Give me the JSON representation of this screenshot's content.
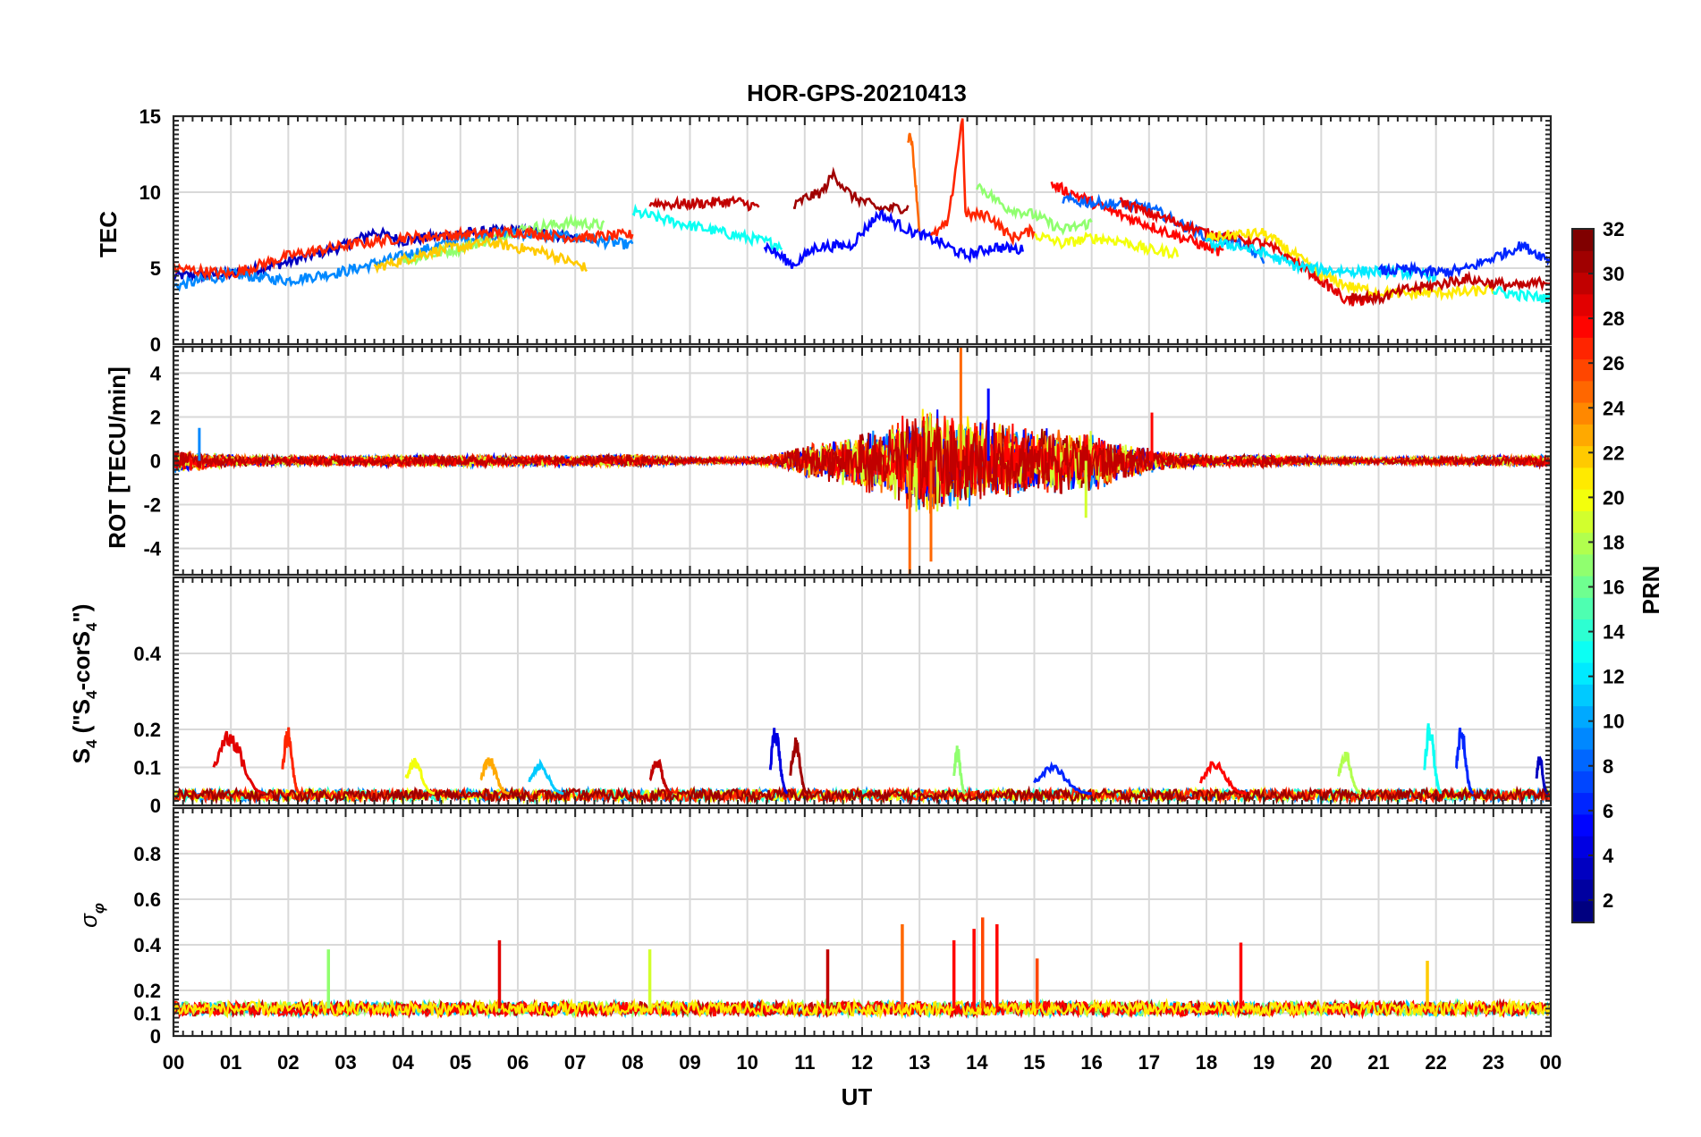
{
  "chart_data": {
    "type": "line",
    "title": "HOR-GPS-20210413",
    "xlabel": "UT",
    "x_ticks": [
      "00",
      "01",
      "02",
      "03",
      "04",
      "05",
      "06",
      "07",
      "08",
      "09",
      "10",
      "11",
      "12",
      "13",
      "14",
      "15",
      "16",
      "17",
      "18",
      "19",
      "20",
      "21",
      "22",
      "23",
      "00"
    ],
    "xlim": [
      0,
      24
    ],
    "colorbar": {
      "label": "PRN",
      "range": [
        1,
        32
      ],
      "ticks": [
        "2",
        "4",
        "6",
        "8",
        "10",
        "12",
        "14",
        "16",
        "18",
        "20",
        "22",
        "24",
        "26",
        "28",
        "30",
        "32"
      ],
      "colormap": "jet"
    },
    "panels": [
      {
        "id": "tec",
        "ylabel": "TEC",
        "ylim": [
          0,
          15
        ],
        "yticks": [
          "0",
          "5",
          "10",
          "15"
        ],
        "series": [
          {
            "prn": 3,
            "x": [
              0,
              1,
              2,
              3,
              3.5,
              4,
              5,
              6,
              7
            ],
            "y": [
              4.5,
              4.6,
              5.4,
              6.5,
              7.4,
              6.8,
              7.3,
              7.5,
              7.0
            ]
          },
          {
            "prn": 9,
            "x": [
              0,
              1,
              2,
              3,
              4,
              5,
              6,
              7,
              8
            ],
            "y": [
              3.8,
              4.6,
              4.2,
              4.8,
              5.8,
              6.9,
              7.3,
              7.0,
              6.5
            ]
          },
          {
            "prn": 13,
            "x": [
              8,
              9,
              10,
              10.6
            ],
            "y": [
              8.7,
              7.8,
              7.0,
              6.5
            ]
          },
          {
            "prn": 17,
            "x": [
              4,
              5,
              6,
              6.5,
              7,
              7.5
            ],
            "y": [
              5.5,
              6.3,
              7.5,
              7.8,
              8.0,
              7.8
            ]
          },
          {
            "prn": 22,
            "x": [
              3.5,
              4.5,
              5.5,
              6.5,
              7.2
            ],
            "y": [
              5.0,
              6.1,
              6.7,
              6.0,
              5.0
            ]
          },
          {
            "prn": 27,
            "x": [
              0,
              1,
              2,
              3,
              4,
              5,
              6,
              7,
              8
            ],
            "y": [
              5.0,
              4.6,
              5.8,
              6.5,
              7.0,
              7.2,
              7.4,
              7.0,
              7.2
            ]
          },
          {
            "prn": 30,
            "x": [
              8.3,
              8.8,
              9.3,
              9.8,
              10.2
            ],
            "y": [
              9.3,
              9.2,
              9.3,
              9.4,
              9.0
            ]
          },
          {
            "prn": 31,
            "x": [
              10.8,
              11,
              11.3,
              11.5,
              11.8,
              12.3,
              12.8
            ],
            "y": [
              9.0,
              9.6,
              10.0,
              11.2,
              9.8,
              8.9,
              9.0
            ]
          },
          {
            "prn": 5,
            "x": [
              10.3,
              10.8,
              11.2,
              11.8,
              12.3,
              12.8,
              13.3,
              13.8,
              14.3,
              14.8
            ],
            "y": [
              6.5,
              5.2,
              6.4,
              6.5,
              8.6,
              7.5,
              6.8,
              5.8,
              6.4,
              6.2
            ]
          },
          {
            "prn": 25,
            "x": [
              12.8,
              12.85,
              12.9,
              13.0
            ],
            "y": [
              13.6,
              13.8,
              12.0,
              7.5
            ]
          },
          {
            "prn": 27,
            "x": [
              13.2,
              13.5,
              13.75,
              13.8,
              14.2,
              14.6,
              15.0
            ],
            "y": [
              7.0,
              8.0,
              15.0,
              8.5,
              8.5,
              7.0,
              7.5
            ]
          },
          {
            "prn": 17,
            "x": [
              14.0,
              14.5,
              15.0,
              15.5,
              16.0
            ],
            "y": [
              10.5,
              9.0,
              8.5,
              7.5,
              8.0
            ]
          },
          {
            "prn": 20,
            "x": [
              15.0,
              15.5,
              16.0,
              16.5,
              17.0,
              17.5
            ],
            "y": [
              7.2,
              6.6,
              7.0,
              6.8,
              6.2,
              6.0
            ]
          },
          {
            "prn": 28,
            "x": [
              15.3,
              15.8,
              16.3,
              16.8,
              17.3,
              17.8,
              18.3
            ],
            "y": [
              10.5,
              9.7,
              8.8,
              8.1,
              7.4,
              6.7,
              6.0
            ]
          },
          {
            "prn": 8,
            "x": [
              15.5,
              16,
              16.5,
              17,
              17.5,
              18,
              18.5,
              19
            ],
            "y": [
              9.5,
              9.3,
              9.2,
              9.0,
              8.0,
              7.1,
              6.8,
              5.6
            ]
          },
          {
            "prn": 29,
            "x": [
              16.5,
              17,
              17.5,
              18,
              18.5,
              19,
              19.5,
              20,
              20.5,
              21
            ],
            "y": [
              9.4,
              8.6,
              8.0,
              7.3,
              7.0,
              6.6,
              5.6,
              4.2,
              2.7,
              3.2
            ]
          },
          {
            "prn": 21,
            "x": [
              18,
              18.5,
              19,
              19.5,
              20,
              20.5,
              21,
              21.5,
              22,
              22.5,
              23
            ],
            "y": [
              7.0,
              7.2,
              7.3,
              6.0,
              4.5,
              3.8,
              3.4,
              3.3,
              3.4,
              3.4,
              3.6
            ]
          },
          {
            "prn": 12,
            "x": [
              18,
              18.5,
              19,
              19.5,
              20,
              20.5,
              21,
              21.5,
              22
            ],
            "y": [
              6.6,
              6.5,
              6.0,
              5.2,
              4.9,
              4.8,
              4.8,
              4.7,
              4.5
            ]
          },
          {
            "prn": 6,
            "x": [
              21,
              21.5,
              22,
              22.5,
              23,
              23.5,
              24
            ],
            "y": [
              4.8,
              4.9,
              4.7,
              4.9,
              5.7,
              6.5,
              5.5
            ]
          },
          {
            "prn": 30,
            "x": [
              20.5,
              21,
              21.5,
              22,
              22.5,
              23,
              23.5,
              24
            ],
            "y": [
              3.2,
              3.0,
              3.6,
              3.9,
              4.3,
              4.0,
              3.8,
              4.2
            ]
          },
          {
            "prn": 13,
            "x": [
              23.0,
              23.5,
              24
            ],
            "y": [
              3.5,
              3.2,
              3.0
            ]
          }
        ]
      },
      {
        "id": "rot",
        "ylabel": "ROT [TECU/min]",
        "ylim": [
          -5.2,
          5.2
        ],
        "yticks": [
          "-4",
          "-2",
          "0",
          "2",
          "4"
        ],
        "envelope": {
          "x": [
            0,
            1,
            2,
            3,
            4,
            5,
            6,
            7,
            8,
            9,
            10,
            10.5,
            11,
            11.5,
            12,
            12.5,
            13,
            13.5,
            14,
            14.5,
            15,
            15.5,
            16,
            16.5,
            17,
            17.5,
            18,
            19,
            20,
            21,
            22,
            23,
            24
          ],
          "amp": [
            0.6,
            0.3,
            0.25,
            0.25,
            0.3,
            0.3,
            0.3,
            0.25,
            0.35,
            0.15,
            0.15,
            0.3,
            0.8,
            1.0,
            1.4,
            1.8,
            2.6,
            2.4,
            2.2,
            1.8,
            1.5,
            1.6,
            1.5,
            1.0,
            0.6,
            0.4,
            0.3,
            0.3,
            0.2,
            0.15,
            0.2,
            0.25,
            0.3
          ]
        },
        "spikes": [
          {
            "x": 12.83,
            "y": -5.2,
            "prn": 25
          },
          {
            "x": 13.2,
            "y": -4.6,
            "prn": 25
          },
          {
            "x": 13.72,
            "y": 5.2,
            "prn": 25
          },
          {
            "x": 14.2,
            "y": 3.3,
            "prn": 5
          },
          {
            "x": 15.9,
            "y": -2.6,
            "prn": 19
          },
          {
            "x": 17.05,
            "y": 2.2,
            "prn": 28
          },
          {
            "x": 0.45,
            "y": 1.5,
            "prn": 9
          }
        ]
      },
      {
        "id": "s4",
        "ylabel": "S_4 (\"S_4-corS_4\")",
        "ylim": [
          0,
          0.6
        ],
        "yticks": [
          "0",
          "0.1",
          "0.2",
          "0.4"
        ],
        "bumps": [
          {
            "x": 1.15,
            "w": 0.9,
            "peak": 0.21,
            "prn": 29
          },
          {
            "x": 2.05,
            "w": 0.3,
            "peak": 0.21,
            "prn": 27
          },
          {
            "x": 4.3,
            "w": 0.5,
            "peak": 0.13,
            "prn": 20
          },
          {
            "x": 5.6,
            "w": 0.5,
            "peak": 0.13,
            "prn": 23
          },
          {
            "x": 6.5,
            "w": 0.6,
            "peak": 0.12,
            "prn": 11
          },
          {
            "x": 8.5,
            "w": 0.4,
            "peak": 0.13,
            "prn": 30
          },
          {
            "x": 10.55,
            "w": 0.3,
            "peak": 0.22,
            "prn": 4
          },
          {
            "x": 10.9,
            "w": 0.3,
            "peak": 0.18,
            "prn": 31
          },
          {
            "x": 13.7,
            "w": 0.2,
            "peak": 0.16,
            "prn": 17
          },
          {
            "x": 15.5,
            "w": 1.0,
            "peak": 0.11,
            "prn": 6
          },
          {
            "x": 18.3,
            "w": 0.8,
            "peak": 0.12,
            "prn": 28
          },
          {
            "x": 20.5,
            "w": 0.4,
            "peak": 0.15,
            "prn": 18
          },
          {
            "x": 21.95,
            "w": 0.3,
            "peak": 0.23,
            "prn": 13
          },
          {
            "x": 22.5,
            "w": 0.3,
            "peak": 0.22,
            "prn": 6
          },
          {
            "x": 23.85,
            "w": 0.2,
            "peak": 0.14,
            "prn": 3
          }
        ]
      },
      {
        "id": "sigma",
        "ylabel": "σ_φ",
        "ylim": [
          0,
          1
        ],
        "yticks": [
          "0",
          "0.1",
          "0.2",
          "0.4",
          "0.6",
          "0.8"
        ],
        "spikes": [
          {
            "x": 2.7,
            "y": 0.38,
            "prn": 17
          },
          {
            "x": 5.68,
            "y": 0.42,
            "prn": 29
          },
          {
            "x": 8.3,
            "y": 0.38,
            "prn": 19
          },
          {
            "x": 11.4,
            "y": 0.38,
            "prn": 30
          },
          {
            "x": 12.7,
            "y": 0.49,
            "prn": 25
          },
          {
            "x": 13.6,
            "y": 0.42,
            "prn": 28
          },
          {
            "x": 13.95,
            "y": 0.47,
            "prn": 28
          },
          {
            "x": 14.1,
            "y": 0.52,
            "prn": 26
          },
          {
            "x": 14.35,
            "y": 0.49,
            "prn": 28
          },
          {
            "x": 15.05,
            "y": 0.34,
            "prn": 26
          },
          {
            "x": 18.6,
            "y": 0.41,
            "prn": 28
          },
          {
            "x": 21.85,
            "y": 0.33,
            "prn": 22
          }
        ]
      }
    ]
  }
}
